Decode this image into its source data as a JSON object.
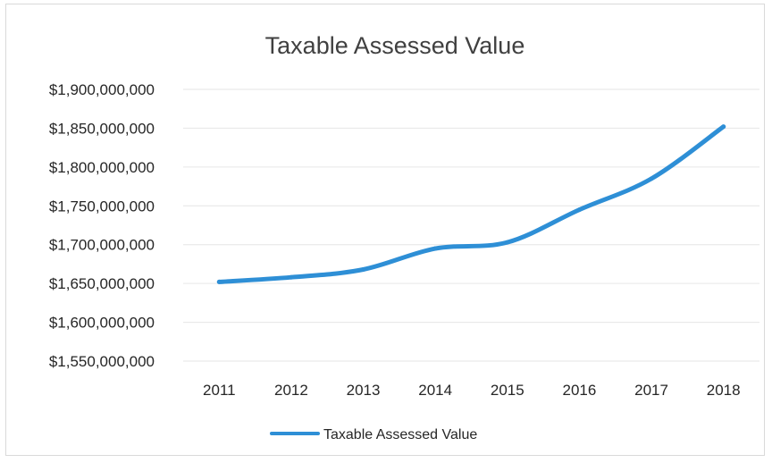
{
  "chart_data": {
    "type": "line",
    "title": "Taxable Assessed Value",
    "xlabel": "",
    "ylabel": "",
    "categories": [
      "2011",
      "2012",
      "2013",
      "2014",
      "2015",
      "2016",
      "2017",
      "2018"
    ],
    "series": [
      {
        "name": "Taxable Assessed Value",
        "values": [
          1652000000,
          1658000000,
          1668000000,
          1695000000,
          1703000000,
          1745000000,
          1785000000,
          1852000000
        ]
      }
    ],
    "ylim": [
      1550000000,
      1900000000
    ],
    "yticks": [
      1900000000,
      1850000000,
      1800000000,
      1750000000,
      1700000000,
      1650000000,
      1600000000,
      1550000000
    ],
    "ytick_labels": [
      "$1,900,000,000",
      "$1,850,000,000",
      "$1,800,000,000",
      "$1,750,000,000",
      "$1,700,000,000",
      "$1,650,000,000",
      "$1,600,000,000",
      "$1,550,000,000"
    ],
    "grid": true,
    "legend_position": "bottom",
    "line_color": "#2e8fd6"
  }
}
